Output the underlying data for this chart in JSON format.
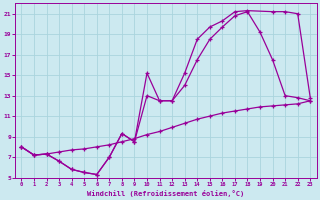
{
  "xlabel": "Windchill (Refroidissement éolien,°C)",
  "bg_color": "#cce9f0",
  "line_color": "#990099",
  "grid_color": "#aad4dd",
  "xlim": [
    -0.5,
    23.5
  ],
  "ylim": [
    5,
    22
  ],
  "xtick_vals": [
    0,
    1,
    2,
    3,
    4,
    5,
    6,
    7,
    8,
    9,
    10,
    11,
    12,
    13,
    14,
    15,
    16,
    17,
    18,
    19,
    20,
    21,
    22,
    23
  ],
  "ytick_vals": [
    5,
    7,
    9,
    11,
    13,
    15,
    17,
    19,
    21
  ],
  "line1_x": [
    0,
    1,
    2,
    3,
    4,
    5,
    6,
    7,
    8,
    9,
    10,
    11,
    12,
    13,
    14,
    15,
    16,
    17,
    18,
    20,
    21,
    22,
    23
  ],
  "line1_y": [
    8.0,
    7.2,
    7.3,
    6.6,
    5.8,
    5.5,
    5.3,
    7.0,
    9.3,
    8.5,
    15.2,
    12.5,
    12.5,
    15.2,
    18.5,
    19.7,
    20.3,
    21.2,
    21.3,
    21.2,
    21.2,
    21.0,
    12.8
  ],
  "line2_x": [
    0,
    1,
    2,
    3,
    4,
    5,
    6,
    7,
    8,
    9,
    10,
    11,
    12,
    13,
    14,
    15,
    16,
    17,
    18,
    19,
    20,
    21,
    22,
    23
  ],
  "line2_y": [
    8.0,
    7.2,
    7.3,
    6.6,
    5.8,
    5.5,
    5.3,
    7.0,
    9.3,
    8.5,
    13.0,
    12.5,
    12.5,
    14.0,
    16.5,
    18.5,
    19.7,
    20.8,
    21.2,
    19.2,
    16.5,
    13.0,
    12.8,
    12.5
  ],
  "line3_x": [
    0,
    1,
    2,
    3,
    4,
    5,
    6,
    7,
    8,
    9,
    10,
    11,
    12,
    13,
    14,
    15,
    16,
    17,
    18,
    19,
    20,
    21,
    22,
    23
  ],
  "line3_y": [
    8.0,
    7.2,
    7.3,
    7.5,
    7.7,
    7.8,
    8.0,
    8.2,
    8.5,
    8.8,
    9.2,
    9.5,
    9.9,
    10.3,
    10.7,
    11.0,
    11.3,
    11.5,
    11.7,
    11.9,
    12.0,
    12.1,
    12.2,
    12.5
  ]
}
